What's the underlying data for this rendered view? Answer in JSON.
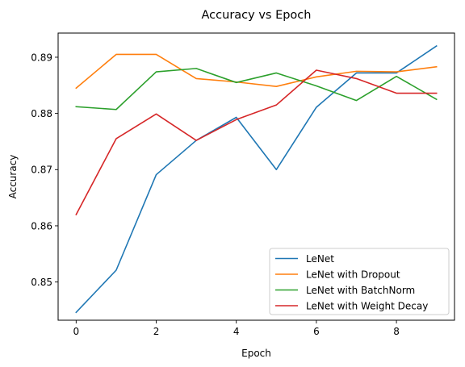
{
  "chart_data": {
    "type": "line",
    "title": "Accuracy vs Epoch",
    "xlabel": "Epoch",
    "ylabel": "Accuracy",
    "xlim": [
      -0.45,
      9.45
    ],
    "ylim": [
      0.8432,
      0.8943
    ],
    "xticks": [
      0,
      2,
      4,
      6,
      8
    ],
    "yticks": [
      0.85,
      0.86,
      0.87,
      0.88,
      0.89
    ],
    "ytick_labels": [
      "0.85",
      "0.86",
      "0.87",
      "0.88",
      "0.89"
    ],
    "grid": false,
    "legend_position": "lower-right",
    "x": [
      0,
      1,
      2,
      3,
      4,
      5,
      6,
      7,
      8,
      9
    ],
    "series": [
      {
        "name": "LeNet",
        "color": "#1f77b4",
        "values": [
          0.8446,
          0.8521,
          0.8691,
          0.8752,
          0.8793,
          0.87,
          0.8811,
          0.8872,
          0.8872,
          0.892
        ]
      },
      {
        "name": "LeNet with Dropout",
        "color": "#ff7f0e",
        "values": [
          0.8845,
          0.8905,
          0.8905,
          0.8862,
          0.8856,
          0.8848,
          0.8865,
          0.8875,
          0.8874,
          0.8883
        ]
      },
      {
        "name": "LeNet with BatchNorm",
        "color": "#2ca02c",
        "values": [
          0.8812,
          0.8807,
          0.8874,
          0.888,
          0.8855,
          0.8872,
          0.8849,
          0.8823,
          0.8866,
          0.8825
        ]
      },
      {
        "name": "LeNet with Weight Decay",
        "color": "#d62728",
        "values": [
          0.862,
          0.8755,
          0.8799,
          0.8752,
          0.8789,
          0.8815,
          0.8877,
          0.8862,
          0.8836,
          0.8836
        ]
      }
    ]
  }
}
